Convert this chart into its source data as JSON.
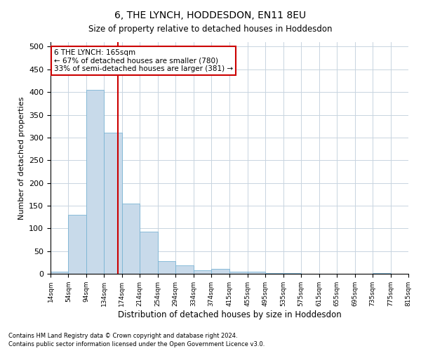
{
  "title": "6, THE LYNCH, HODDESDON, EN11 8EU",
  "subtitle": "Size of property relative to detached houses in Hoddesdon",
  "xlabel": "Distribution of detached houses by size in Hoddesdon",
  "ylabel": "Number of detached properties",
  "bar_color": "#c8daea",
  "bar_edge_color": "#7ab4d4",
  "grid_color": "#c8d4e0",
  "vline_x": 165,
  "vline_color": "#cc0000",
  "annotation_text": "6 THE LYNCH: 165sqm\n← 67% of detached houses are smaller (780)\n33% of semi-detached houses are larger (381) →",
  "annotation_box_color": "#ffffff",
  "annotation_box_edge": "#cc0000",
  "bins": [
    14,
    54,
    94,
    134,
    174,
    214,
    254,
    294,
    334,
    374,
    415,
    455,
    495,
    535,
    575,
    615,
    655,
    695,
    735,
    775,
    815
  ],
  "counts": [
    5,
    130,
    405,
    310,
    155,
    92,
    28,
    18,
    8,
    11,
    5,
    5,
    1,
    1,
    0,
    0,
    0,
    0,
    1,
    0
  ],
  "tick_labels": [
    "14sqm",
    "54sqm",
    "94sqm",
    "134sqm",
    "174sqm",
    "214sqm",
    "254sqm",
    "294sqm",
    "334sqm",
    "374sqm",
    "415sqm",
    "455sqm",
    "495sqm",
    "535sqm",
    "575sqm",
    "615sqm",
    "655sqm",
    "695sqm",
    "735sqm",
    "775sqm",
    "815sqm"
  ],
  "yticks": [
    0,
    50,
    100,
    150,
    200,
    250,
    300,
    350,
    400,
    450,
    500
  ],
  "footnote": "Contains HM Land Registry data © Crown copyright and database right 2024.\nContains public sector information licensed under the Open Government Licence v3.0.",
  "fig_width": 6.0,
  "fig_height": 5.0,
  "title_fontsize": 10,
  "subtitle_fontsize": 9
}
